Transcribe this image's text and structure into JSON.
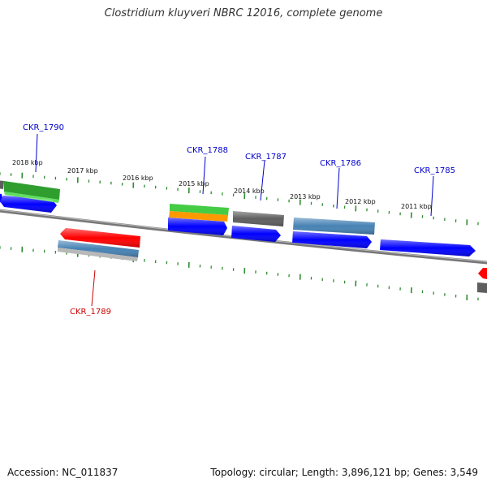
{
  "title": "Clostridium kluyveri NBRC 12016, complete genome",
  "footer": {
    "accession": "Accession: NC_011837",
    "meta": "Topology: circular; Length: 3,896,121 bp; Genes: 3,549"
  },
  "scale_labels": [
    "2018 kbp",
    "2017 kbp",
    "2016 kbp",
    "2015 kbp",
    "2014 kbp",
    "2013 kbp",
    "2012 kbp",
    "2011 kbp"
  ],
  "gene_labels": [
    {
      "text": "CKR_1790",
      "color": "#0000cc"
    },
    {
      "text": "CKR_1788",
      "color": "#0000cc"
    },
    {
      "text": "CKR_1787",
      "color": "#0000cc"
    },
    {
      "text": "CKR_1786",
      "color": "#0000cc"
    },
    {
      "text": "CKR_1785",
      "color": "#0000cc"
    },
    {
      "text": "CKR_1789",
      "color": "#cc0000"
    }
  ],
  "colors": {
    "backbone": "#888888",
    "tick": "#2e8b2e",
    "cds_forward": "#0000ff",
    "cds_reverse": "#ff0000",
    "gene_gray": "#5e5e5e",
    "rna_green": "#40c040",
    "steelblue": "#4682b4",
    "orange": "#ff9900"
  }
}
